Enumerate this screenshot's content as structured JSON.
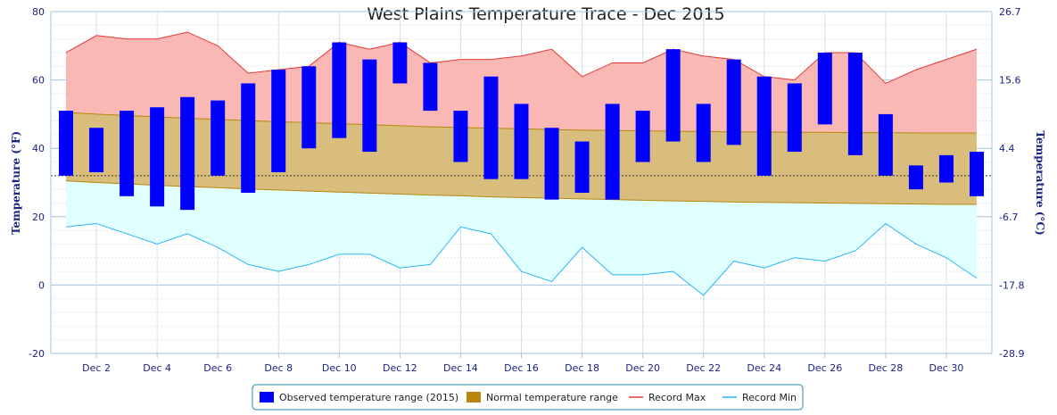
{
  "chart_data": {
    "type": "bar",
    "title": "West Plains Temperature Trace - Dec 2015",
    "ylabel": "Temperature (°F)",
    "y2label": "Temperature (°C)",
    "ylim": [
      -20,
      80
    ],
    "yticks": [
      -20,
      0,
      20,
      40,
      60,
      80
    ],
    "y2ticks": [
      "26.7",
      "15.6",
      "4.4",
      "-6.7",
      "-17.8",
      "-28.9"
    ],
    "y2tick_values_f": [
      80,
      60,
      40,
      20,
      0,
      -20
    ],
    "x": [
      1,
      2,
      3,
      4,
      5,
      6,
      7,
      8,
      9,
      10,
      11,
      12,
      13,
      14,
      15,
      16,
      17,
      18,
      19,
      20,
      21,
      22,
      23,
      24,
      25,
      26,
      27,
      28,
      29,
      30,
      31
    ],
    "xtick_days": [
      2,
      4,
      6,
      8,
      10,
      12,
      14,
      16,
      18,
      20,
      22,
      24,
      26,
      28,
      30
    ],
    "xtick_labels": [
      "Dec 2",
      "Dec 4",
      "Dec 6",
      "Dec 8",
      "Dec 10",
      "Dec 12",
      "Dec 14",
      "Dec 16",
      "Dec 18",
      "Dec 20",
      "Dec 22",
      "Dec 24",
      "Dec 26",
      "Dec 28",
      "Dec 30"
    ],
    "freezing_line_f": 32,
    "series": [
      {
        "name": "Observed temperature range (2015)",
        "type": "range-bar",
        "color": "#0000ff",
        "low": [
          32,
          33,
          26,
          23,
          22,
          32,
          27,
          33,
          40,
          43,
          39,
          59,
          51,
          36,
          31,
          31,
          25,
          27,
          25,
          36,
          42,
          36,
          41,
          32,
          39,
          47,
          38,
          32,
          28,
          30,
          26
        ],
        "high": [
          51,
          46,
          51,
          52,
          55,
          54,
          59,
          63,
          64,
          71,
          66,
          71,
          65,
          51,
          61,
          53,
          46,
          42,
          53,
          51,
          69,
          53,
          66,
          61,
          59,
          68,
          68,
          50,
          35,
          38,
          39
        ]
      },
      {
        "name": "Normal temperature range",
        "type": "range-area",
        "color": "#b8860b",
        "low": [
          30.5,
          30,
          29.6,
          29.2,
          28.8,
          28.5,
          28.1,
          27.8,
          27.5,
          27.2,
          26.9,
          26.6,
          26.3,
          26.1,
          25.8,
          25.6,
          25.4,
          25.2,
          25,
          24.8,
          24.6,
          24.5,
          24.3,
          24.2,
          24.1,
          24,
          23.9,
          23.8,
          23.7,
          23.6,
          23.6
        ],
        "high": [
          50.5,
          50,
          49.6,
          49.2,
          48.8,
          48.5,
          48.1,
          47.8,
          47.5,
          47.2,
          46.9,
          46.6,
          46.3,
          46.1,
          45.9,
          45.7,
          45.5,
          45.3,
          45.2,
          45.1,
          45,
          44.9,
          44.8,
          44.8,
          44.7,
          44.7,
          44.6,
          44.6,
          44.5,
          44.5,
          44.5
        ]
      },
      {
        "name": "Record Max",
        "type": "line",
        "color": "#e53935",
        "values": [
          68,
          73,
          72,
          72,
          74,
          70,
          62,
          63,
          64,
          71,
          69,
          71,
          65,
          66,
          66,
          67,
          69,
          61,
          65,
          65,
          69,
          67,
          66,
          61,
          60,
          68,
          68,
          59,
          63,
          66,
          69
        ]
      },
      {
        "name": "Record Min",
        "type": "line",
        "color": "#29b6f6",
        "values": [
          17,
          18,
          15,
          12,
          15,
          11,
          6,
          4,
          6,
          9,
          9,
          5,
          6,
          17,
          15,
          4,
          1,
          11,
          3,
          3,
          4,
          -3,
          7,
          5,
          8,
          7,
          10,
          18,
          12,
          8,
          2
        ]
      }
    ],
    "legend_position": "bottom-center",
    "grid": true
  },
  "legend": [
    {
      "label": "Observed temperature range (2015)",
      "color": "#0000ff",
      "kind": "box"
    },
    {
      "label": "Normal temperature range",
      "color": "#b8860b",
      "kind": "box"
    },
    {
      "label": "Record Max",
      "color": "#e53935",
      "kind": "line"
    },
    {
      "label": "Record Min",
      "color": "#29b6f6",
      "kind": "line"
    }
  ]
}
